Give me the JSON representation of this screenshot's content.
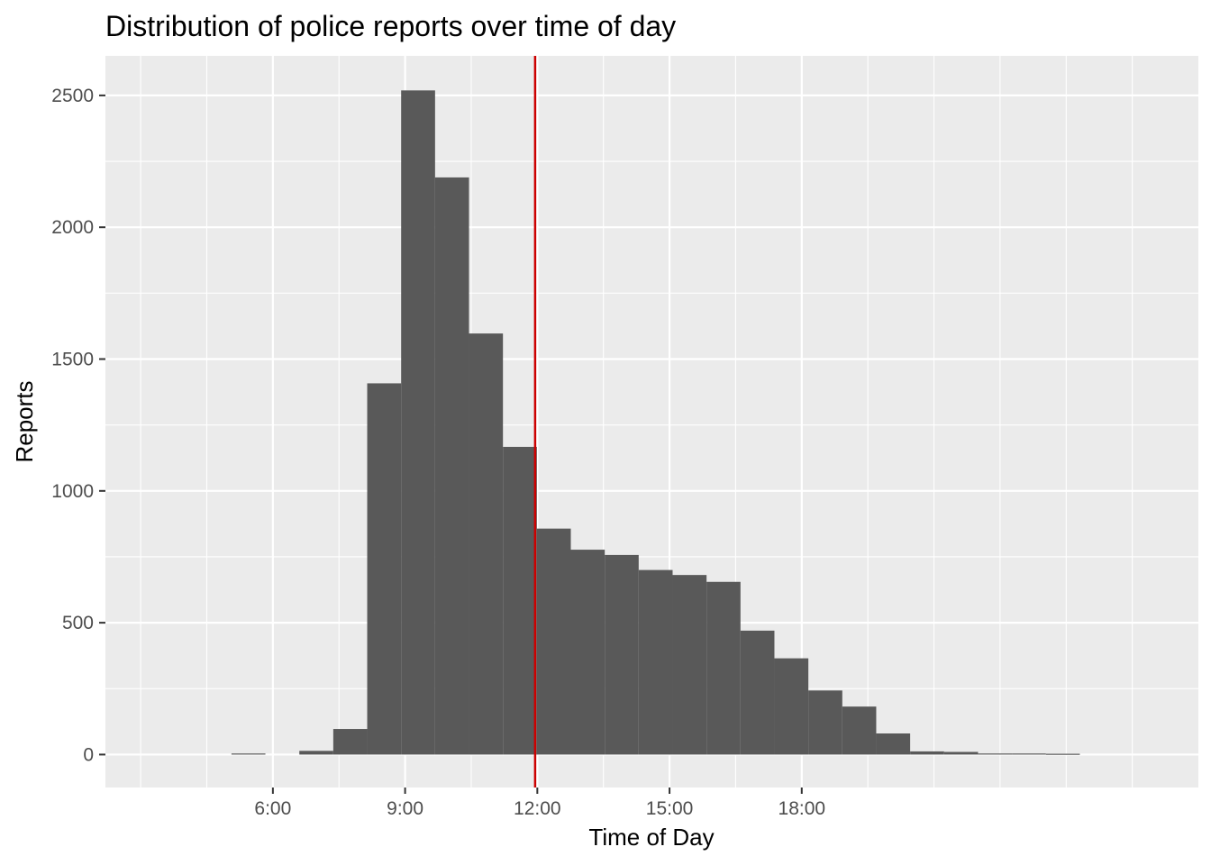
{
  "chart_data": {
    "type": "bar",
    "title": "Distribution of police reports over time of day",
    "xlabel": "Time of Day",
    "ylabel": "Reports",
    "x_unit": "hours",
    "xlim": [
      2.2,
      27.0
    ],
    "ylim": [
      -125,
      2650
    ],
    "bin_width_hours": 0.77,
    "x_ticks": [
      {
        "value": 6,
        "label": "6:00"
      },
      {
        "value": 9,
        "label": "9:00"
      },
      {
        "value": 12,
        "label": "12:00"
      },
      {
        "value": 15,
        "label": "15:00"
      },
      {
        "value": 18,
        "label": "18:00"
      }
    ],
    "x_minor_grid": [
      3,
      4.5,
      7.5,
      10.5,
      13.5,
      16.5,
      19.5,
      21,
      22.5,
      24,
      25.5
    ],
    "y_ticks": [
      0,
      500,
      1000,
      1500,
      2000,
      2500
    ],
    "bins": [
      {
        "start": 5.06,
        "end": 5.83,
        "value": 4
      },
      {
        "start": 6.6,
        "end": 7.37,
        "value": 14
      },
      {
        "start": 7.37,
        "end": 8.14,
        "value": 97
      },
      {
        "start": 8.14,
        "end": 8.91,
        "value": 1408
      },
      {
        "start": 8.91,
        "end": 9.68,
        "value": 2519
      },
      {
        "start": 9.68,
        "end": 10.45,
        "value": 2189
      },
      {
        "start": 10.45,
        "end": 11.22,
        "value": 1597
      },
      {
        "start": 11.22,
        "end": 11.99,
        "value": 1167
      },
      {
        "start": 11.99,
        "end": 12.76,
        "value": 857
      },
      {
        "start": 12.76,
        "end": 13.53,
        "value": 777
      },
      {
        "start": 13.53,
        "end": 14.3,
        "value": 757
      },
      {
        "start": 14.3,
        "end": 15.07,
        "value": 700
      },
      {
        "start": 15.07,
        "end": 15.84,
        "value": 681
      },
      {
        "start": 15.84,
        "end": 16.61,
        "value": 655
      },
      {
        "start": 16.61,
        "end": 17.38,
        "value": 470
      },
      {
        "start": 17.38,
        "end": 18.15,
        "value": 365
      },
      {
        "start": 18.15,
        "end": 18.92,
        "value": 243
      },
      {
        "start": 18.92,
        "end": 19.69,
        "value": 182
      },
      {
        "start": 19.69,
        "end": 20.46,
        "value": 80
      },
      {
        "start": 20.46,
        "end": 21.23,
        "value": 12
      },
      {
        "start": 21.23,
        "end": 22.0,
        "value": 10
      },
      {
        "start": 22.0,
        "end": 22.77,
        "value": 4
      },
      {
        "start": 22.77,
        "end": 23.54,
        "value": 4
      },
      {
        "start": 23.54,
        "end": 24.31,
        "value": 3
      }
    ],
    "reference_line": {
      "x": 11.95,
      "color": "#cc0000"
    },
    "bar_color": "#595959",
    "panel_background": "#ebebeb",
    "grid_color": "#ffffff",
    "grid": true,
    "legend": "none"
  }
}
